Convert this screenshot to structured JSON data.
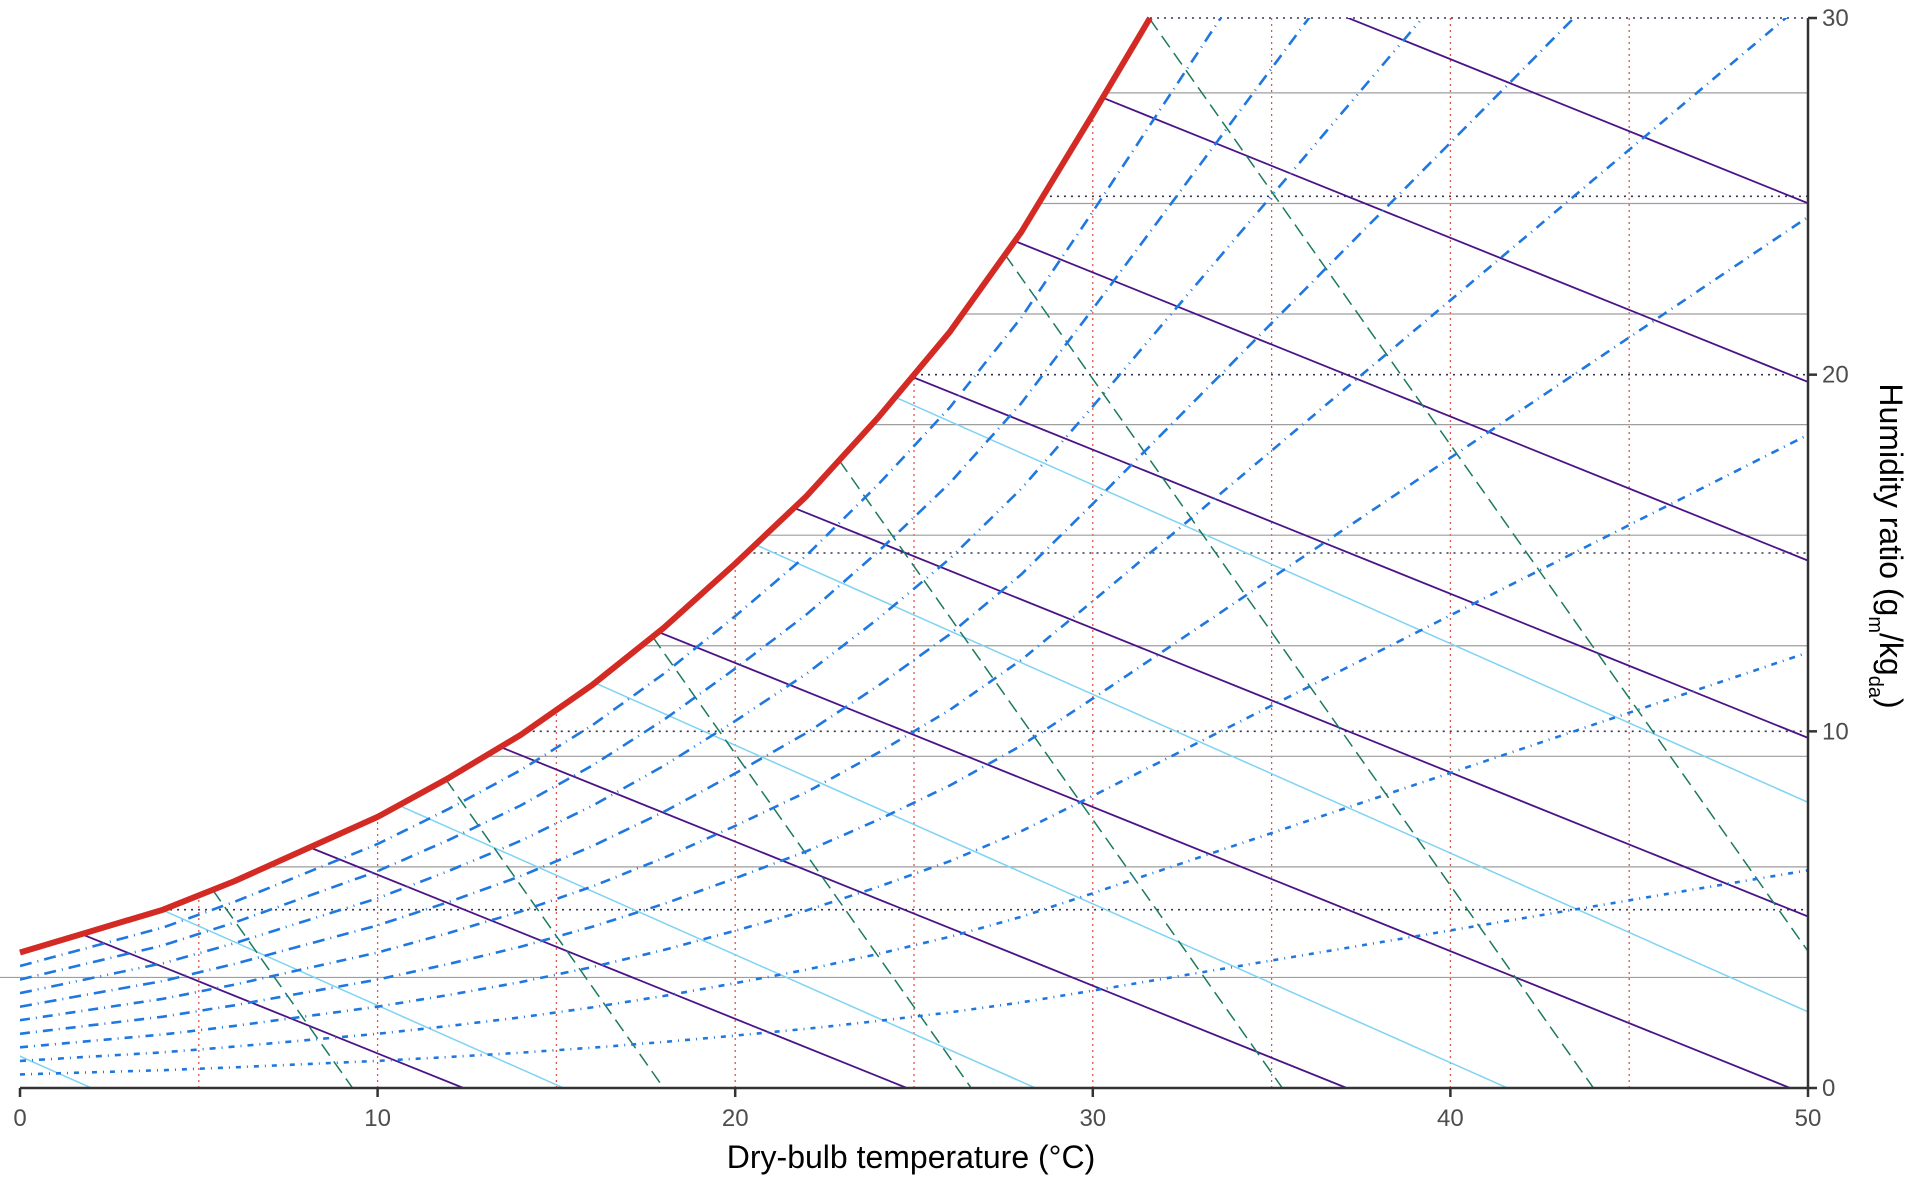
{
  "chart_data": {
    "type": "line",
    "title": "",
    "xlabel": "Dry-bulb temperature (°C)",
    "ylabel_main": "Humidity ratio (g",
    "ylabel_sub1": "m",
    "ylabel_mid": "/kg",
    "ylabel_sub2": "da",
    "ylabel_end": ")",
    "xlim": [
      0,
      50
    ],
    "ylim": [
      0,
      30
    ],
    "x_ticks": [
      0,
      10,
      20,
      30,
      40,
      50
    ],
    "y_ticks": [
      0,
      10,
      20,
      30
    ],
    "y_axis_side": "right",
    "grid_x_every": 5,
    "grid_y_every": 5,
    "saturation_curve": {
      "name": "saturation",
      "color": "#d42a24",
      "x": [
        0,
        2,
        4,
        6,
        8,
        10,
        12,
        14,
        16,
        18,
        20,
        22,
        24,
        26,
        28,
        30,
        31.6
      ],
      "y": [
        3.8,
        4.4,
        5.0,
        5.8,
        6.7,
        7.6,
        8.7,
        9.9,
        11.3,
        12.9,
        14.7,
        16.6,
        18.8,
        21.2,
        24.0,
        27.3,
        30.0
      ]
    },
    "relative_humidity_percent": [
      10,
      20,
      30,
      40,
      50,
      60,
      70,
      80,
      90
    ],
    "humidity_ratio_lines": [
      3.1,
      6.2,
      9.3,
      12.4,
      15.5,
      18.6,
      21.7,
      24.8,
      27.9
    ],
    "humidity_ratio_dotted": [
      5,
      10,
      15,
      20,
      25,
      30
    ],
    "enthalpy_lines": [
      {
        "x_end": 12.4
      },
      {
        "x_end": 24.8
      },
      {
        "x_end": 37.1
      },
      {
        "x_end": 49.5
      },
      {
        "x_end": 61.9
      },
      {
        "x_end": 74.3
      },
      {
        "x_end": 86.6
      },
      {
        "x_end": 99.0
      },
      {
        "x_end": 111.4
      }
    ],
    "specific_volume_lines": [
      {
        "x_end": 2.0
      },
      {
        "x_end": 15.2
      },
      {
        "x_end": 28.4
      },
      {
        "x_end": 41.6
      },
      {
        "x_end": 54.8
      },
      {
        "x_end": 68.0
      }
    ],
    "wet_bulb_lines": [
      {
        "x_end": 9.3
      },
      {
        "x_end": 18.0
      },
      {
        "x_end": 26.6
      },
      {
        "x_end": 35.3
      },
      {
        "x_end": 44.0
      },
      {
        "x_end": 52.7
      }
    ],
    "colors": {
      "saturation": "#d42a24",
      "rh": "#1f77e0",
      "enthalpy": "#4b1486",
      "volume": "#7fd3f2",
      "wetbulb": "#1d7a5c",
      "grid_x": "#e0554f",
      "grid_y": "#9e9e9e",
      "grid_y_dotted": "#333355",
      "axis": "#333333"
    }
  }
}
